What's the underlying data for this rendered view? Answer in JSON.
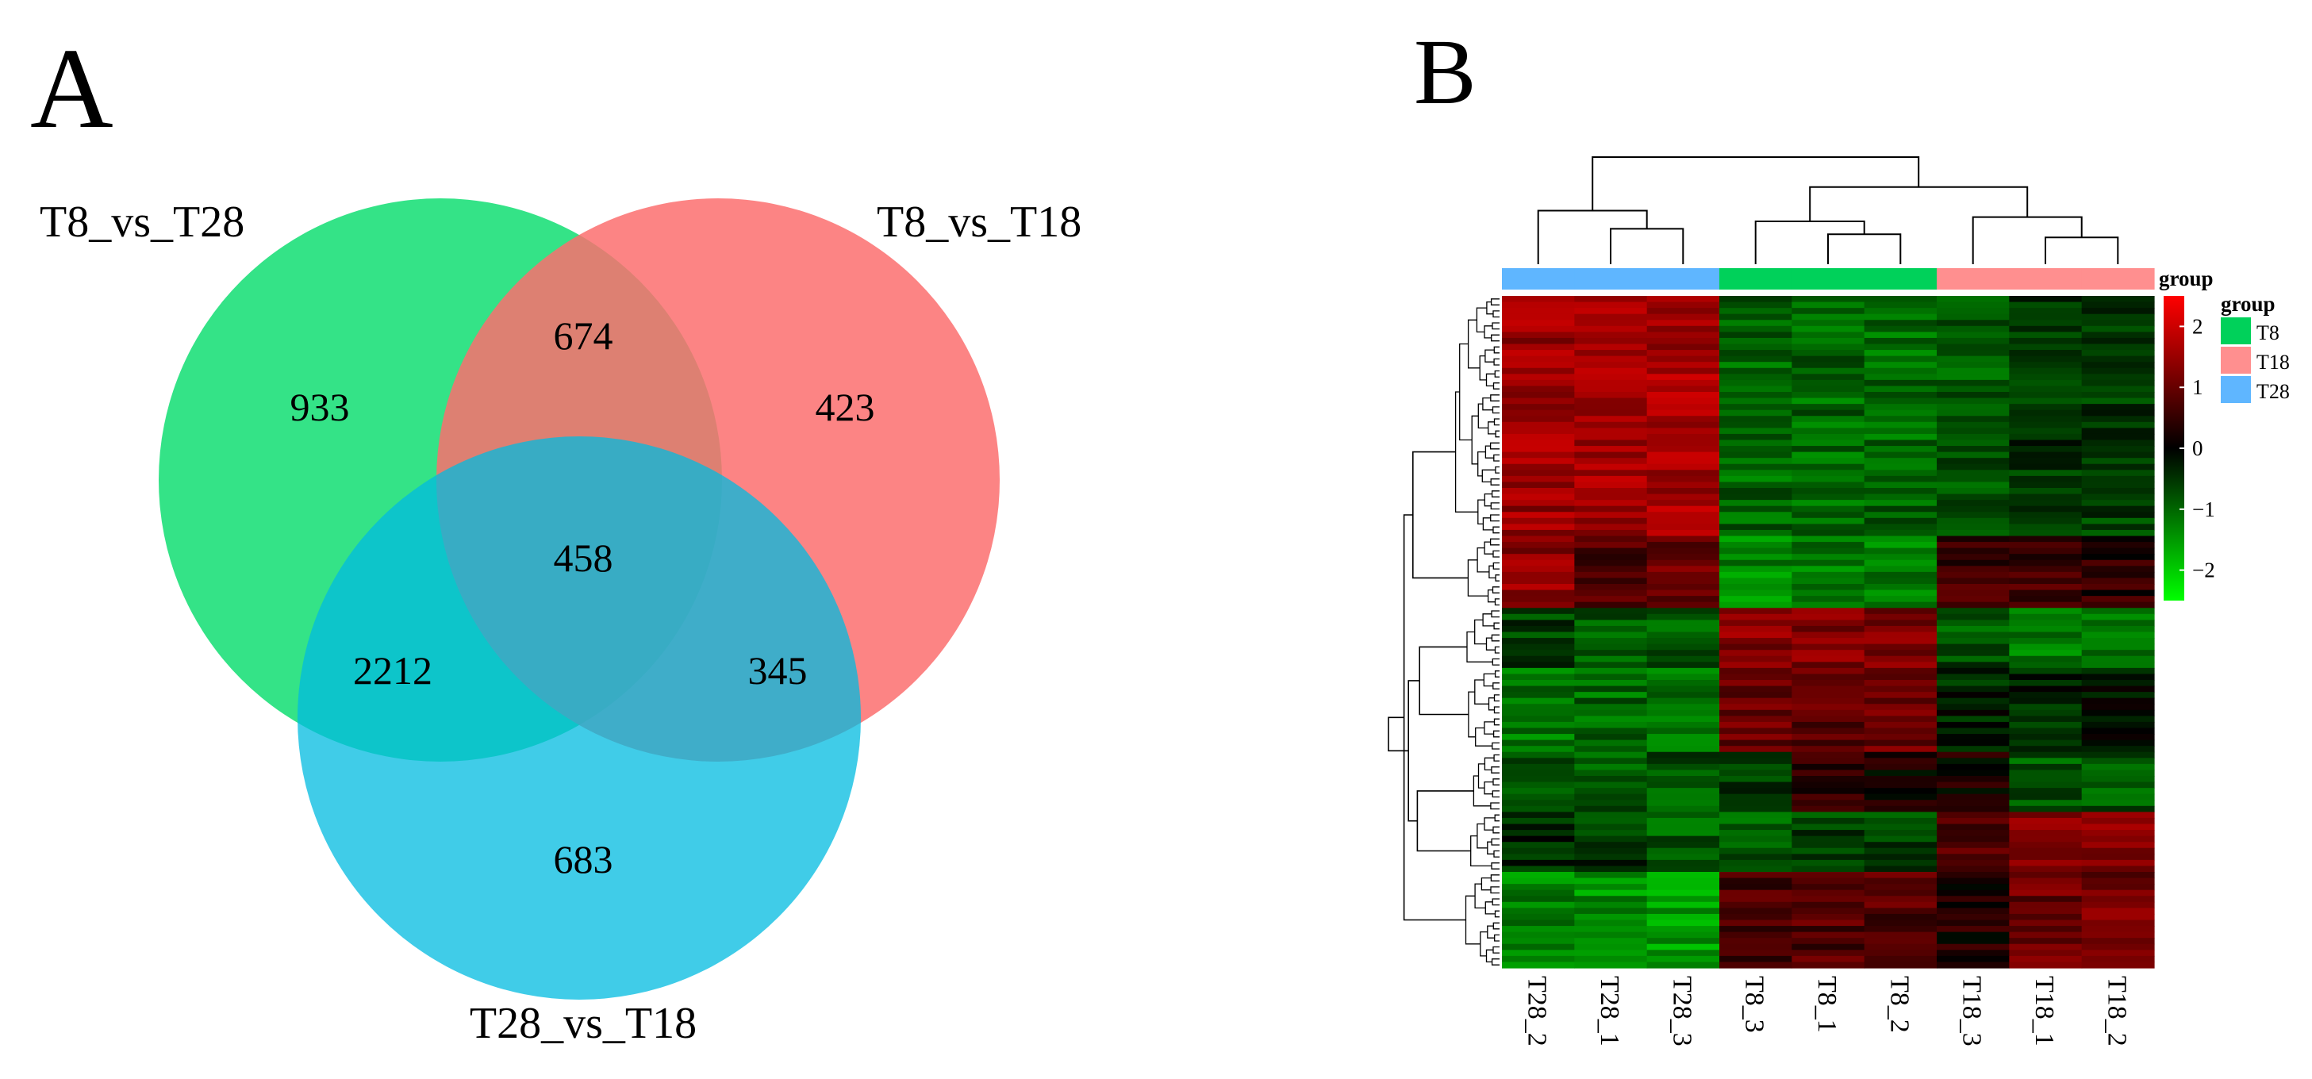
{
  "panels": {
    "a": {
      "label": "A"
    },
    "b": {
      "label": "B"
    }
  },
  "chart_data": [
    {
      "type": "venn",
      "sets": [
        {
          "name": "T8_vs_T28",
          "color": "#1ee07a"
        },
        {
          "name": "T8_vs_T18",
          "color": "#fc6f6f"
        },
        {
          "name": "T28_vs_T18",
          "color": "#00bbe0"
        }
      ],
      "regions": [
        {
          "sets": [
            "T8_vs_T28"
          ],
          "value": 933
        },
        {
          "sets": [
            "T8_vs_T18"
          ],
          "value": 423
        },
        {
          "sets": [
            "T28_vs_T18"
          ],
          "value": 683
        },
        {
          "sets": [
            "T8_vs_T28",
            "T8_vs_T18"
          ],
          "value": 674
        },
        {
          "sets": [
            "T8_vs_T28",
            "T28_vs_T18"
          ],
          "value": 2212
        },
        {
          "sets": [
            "T8_vs_T18",
            "T28_vs_T18"
          ],
          "value": 345
        },
        {
          "sets": [
            "T8_vs_T28",
            "T8_vs_T18",
            "T28_vs_T18"
          ],
          "value": 458
        }
      ]
    },
    {
      "type": "heatmap",
      "columns": [
        "T28_2",
        "T28_1",
        "T28_3",
        "T8_3",
        "T8_1",
        "T8_2",
        "T18_3",
        "T18_1",
        "T18_2"
      ],
      "column_groups": [
        "T28",
        "T28",
        "T28",
        "T8",
        "T8",
        "T8",
        "T18",
        "T18",
        "T18"
      ],
      "legend": {
        "title": "group",
        "entries": [
          {
            "name": "T8",
            "color": "#00d15a"
          },
          {
            "name": "T18",
            "color": "#ff8f8f"
          },
          {
            "name": "T28",
            "color": "#5fb6ff"
          }
        ]
      },
      "colorbar": {
        "range": [
          -2.5,
          2.5
        ],
        "ticks": [
          {
            "value": 2,
            "label": "2"
          },
          {
            "value": 1,
            "label": "1"
          },
          {
            "value": 0,
            "label": "0"
          },
          {
            "value": -1,
            "label": "−1"
          },
          {
            "value": -2,
            "label": "−2"
          }
        ],
        "colors": {
          "low": "#00ff00",
          "mid": "#000000",
          "high": "#ff0000"
        }
      },
      "row_blocks": [
        {
          "rows": 40,
          "values": [
            1.5,
            1.6,
            1.6,
            -1.0,
            -1.0,
            -1.0,
            -0.8,
            -0.5,
            -0.6
          ]
        },
        {
          "rows": 12,
          "values": [
            1.4,
            0.8,
            1.0,
            -1.3,
            -1.2,
            -1.2,
            0.6,
            0.6,
            0.4
          ]
        },
        {
          "rows": 10,
          "values": [
            -0.6,
            -0.9,
            -0.8,
            1.3,
            1.3,
            1.2,
            -0.8,
            -1.2,
            -1.0
          ]
        },
        {
          "rows": 14,
          "values": [
            -1.2,
            -1.0,
            -1.2,
            1.0,
            0.9,
            1.0,
            -0.3,
            -0.4,
            -0.3
          ]
        },
        {
          "rows": 10,
          "values": [
            -0.7,
            -0.8,
            -0.8,
            -0.6,
            0.5,
            0.2,
            0.2,
            -0.8,
            -0.8
          ]
        },
        {
          "rows": 10,
          "values": [
            -0.3,
            -0.5,
            -0.9,
            -0.9,
            -0.6,
            -0.7,
            0.8,
            1.3,
            1.3
          ]
        },
        {
          "rows": 16,
          "values": [
            -1.3,
            -1.4,
            -1.5,
            0.7,
            0.8,
            0.8,
            0.3,
            1.0,
            1.1
          ]
        }
      ],
      "col_dendrogram": [
        {
          "a": 1,
          "b": 2,
          "h": 0.33
        },
        {
          "a": 0,
          "b": 9,
          "h": 0.5
        },
        {
          "a": 4,
          "b": 5,
          "h": 0.28
        },
        {
          "a": 3,
          "b": 11,
          "h": 0.4
        },
        {
          "a": 7,
          "b": 8,
          "h": 0.25
        },
        {
          "a": 6,
          "b": 13,
          "h": 0.44
        },
        {
          "a": 12,
          "b": 14,
          "h": 0.72
        },
        {
          "a": 10,
          "b": 15,
          "h": 1.0
        }
      ]
    }
  ]
}
